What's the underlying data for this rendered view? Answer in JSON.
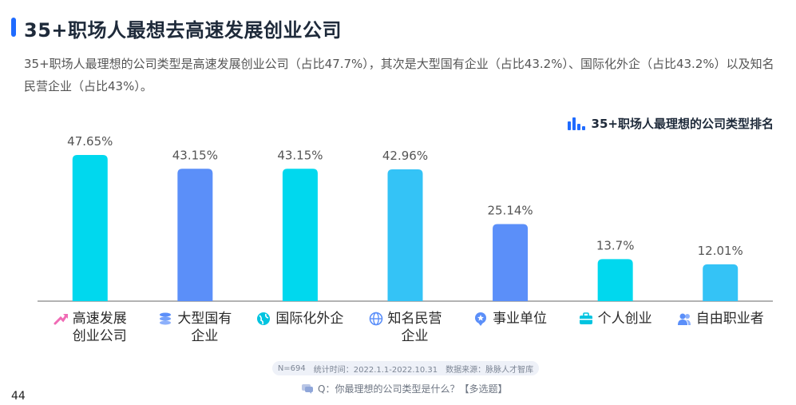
{
  "header": {
    "title": "35+职场人最想去高速发展创业公司",
    "description": "35+职场人最理想的公司类型是高速发展创业公司（占比47.7%），其次是大型国有企业（占比43.2%）、国际化外企（占比43.2%）以及知名民营企业（占比43%）。"
  },
  "chart_data": {
    "type": "bar",
    "title": "35+职场人最理想的公司类型排名",
    "categories": [
      "高速发展创业公司",
      "大型国有企业",
      "国际化外企",
      "知名民营企业",
      "事业单位",
      "个人创业",
      "自由职业者"
    ],
    "category_lines": [
      [
        "高速发展",
        "创业公司"
      ],
      [
        "大型国有",
        "企业"
      ],
      [
        "国际化外企"
      ],
      [
        "知名民营",
        "企业"
      ],
      [
        "事业单位"
      ],
      [
        "个人创业"
      ],
      [
        "自由职业者"
      ]
    ],
    "values": [
      47.65,
      43.15,
      43.15,
      42.96,
      25.14,
      13.7,
      12.01
    ],
    "value_labels": [
      "47.65%",
      "43.15%",
      "43.15%",
      "42.96%",
      "25.14%",
      "13.7%",
      "12.01%"
    ],
    "bar_colors": [
      "#00d8ee",
      "#5b8ff9",
      "#00d8ee",
      "#34c3f6",
      "#5b8ff9",
      "#00d8ee",
      "#34c3f6"
    ],
    "category_icons": [
      "trend-arrow-icon",
      "coins-icon",
      "globe-icon",
      "web-globe-icon",
      "star-badge-icon",
      "briefcase-icon",
      "users-icon"
    ],
    "icon_colors": [
      "#f06bb5",
      "#5b8ff9",
      "#00c4e0",
      "#5b8ff9",
      "#5b8ff9",
      "#00c4e0",
      "#5b8ff9"
    ],
    "ylim": [
      0,
      50
    ],
    "grid": false,
    "legend": "none"
  },
  "footer": {
    "sample": "N=694",
    "period": "统计时间：2022.1.1-2022.10.31",
    "source": "数据来源：脉脉人才智库",
    "question": "Q：你最理想的公司类型是什么？【多选题】",
    "page_number": "44"
  },
  "colors": {
    "accent": "#1f6bff",
    "cyan": "#00d8ee",
    "blue": "#5b8ff9",
    "sky": "#34c3f6"
  }
}
